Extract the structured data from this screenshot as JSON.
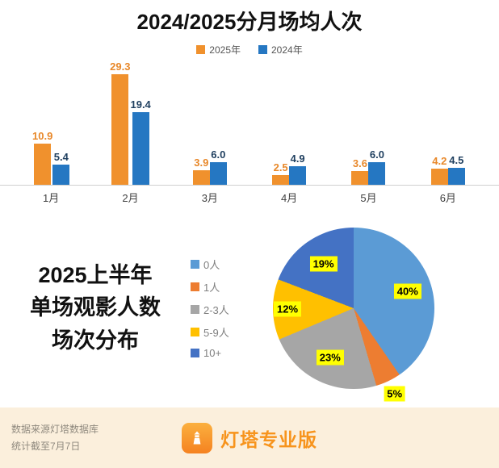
{
  "chart_data": [
    {
      "type": "bar",
      "title": "2024/2025分月场均人次",
      "categories": [
        "1月",
        "2月",
        "3月",
        "4月",
        "5月",
        "6月"
      ],
      "series": [
        {
          "name": "2025年",
          "color": "#F0912D",
          "label_color": "#E8882A",
          "values": [
            10.9,
            29.3,
            3.9,
            2.5,
            3.6,
            4.2
          ],
          "labels": [
            "10.9",
            "29.3",
            "3.9",
            "2.5",
            "3.6",
            "4.2"
          ]
        },
        {
          "name": "2024年",
          "color": "#2577C2",
          "label_color": "#1F3F5F",
          "values": [
            5.4,
            19.4,
            6.0,
            4.9,
            6.0,
            4.5
          ],
          "labels": [
            "5.4",
            "19.4",
            "6.0",
            "4.9",
            "6.0",
            "4.5"
          ]
        }
      ],
      "xlabel": "",
      "ylabel": "",
      "ylim": [
        0,
        30
      ],
      "grid": false,
      "legend_position": "top"
    },
    {
      "type": "pie",
      "title": "2025上半年单场观影人数场次分布",
      "title_lines": [
        "2025上半年",
        "单场观影人数",
        "场次分布"
      ],
      "labels": [
        "0人",
        "1人",
        "2-3人",
        "5-9人",
        "10+"
      ],
      "values": [
        40,
        5,
        23,
        12,
        19
      ],
      "value_labels": [
        "40%",
        "5%",
        "23%",
        "12%",
        "19%"
      ],
      "colors": [
        "#5B9BD5",
        "#ED7D31",
        "#A6A6A6",
        "#FFC000",
        "#4472C4"
      ],
      "label_bg": "#FFFF00",
      "legend_position": "left"
    }
  ],
  "footer": {
    "source_line1": "数据来源灯塔数据库",
    "source_line2": "统计截至7月7日",
    "brand": "灯塔专业版"
  }
}
